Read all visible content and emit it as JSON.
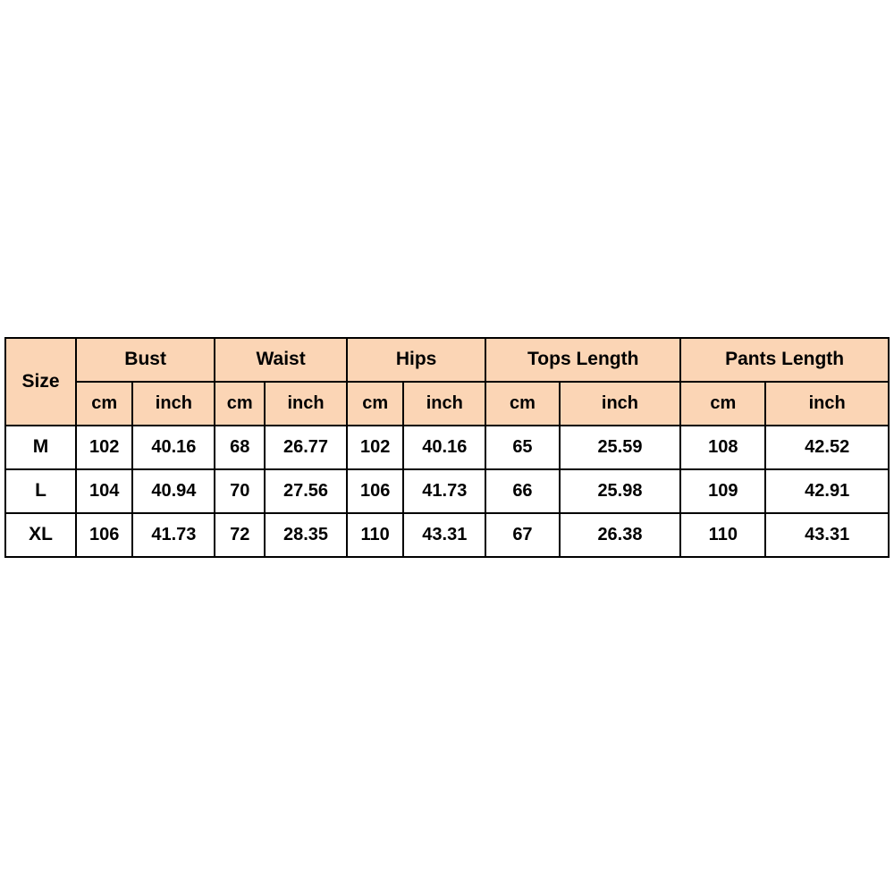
{
  "table": {
    "type": "table",
    "header_background_color": "#fbd5b5",
    "data_background_color": "#ffffff",
    "border_color": "#000000",
    "border_width": 2,
    "text_color": "#000000",
    "font_weight": "bold",
    "header_fontsize": 21,
    "data_fontsize": 20,
    "size_label": "Size",
    "measurements": [
      {
        "label": "Bust"
      },
      {
        "label": "Waist"
      },
      {
        "label": "Hips"
      },
      {
        "label": "Tops Length"
      },
      {
        "label": "Pants Length"
      }
    ],
    "units": {
      "cm": "cm",
      "inch": "inch"
    },
    "rows": [
      {
        "size": "M",
        "values": [
          {
            "cm": "102",
            "inch": "40.16"
          },
          {
            "cm": "68",
            "inch": "26.77"
          },
          {
            "cm": "102",
            "inch": "40.16"
          },
          {
            "cm": "65",
            "inch": "25.59"
          },
          {
            "cm": "108",
            "inch": "42.52"
          }
        ]
      },
      {
        "size": "L",
        "values": [
          {
            "cm": "104",
            "inch": "40.94"
          },
          {
            "cm": "70",
            "inch": "27.56"
          },
          {
            "cm": "106",
            "inch": "41.73"
          },
          {
            "cm": "66",
            "inch": "25.98"
          },
          {
            "cm": "109",
            "inch": "42.91"
          }
        ]
      },
      {
        "size": "XL",
        "values": [
          {
            "cm": "106",
            "inch": "41.73"
          },
          {
            "cm": "72",
            "inch": "28.35"
          },
          {
            "cm": "110",
            "inch": "43.31"
          },
          {
            "cm": "67",
            "inch": "26.38"
          },
          {
            "cm": "110",
            "inch": "43.31"
          }
        ]
      }
    ]
  }
}
